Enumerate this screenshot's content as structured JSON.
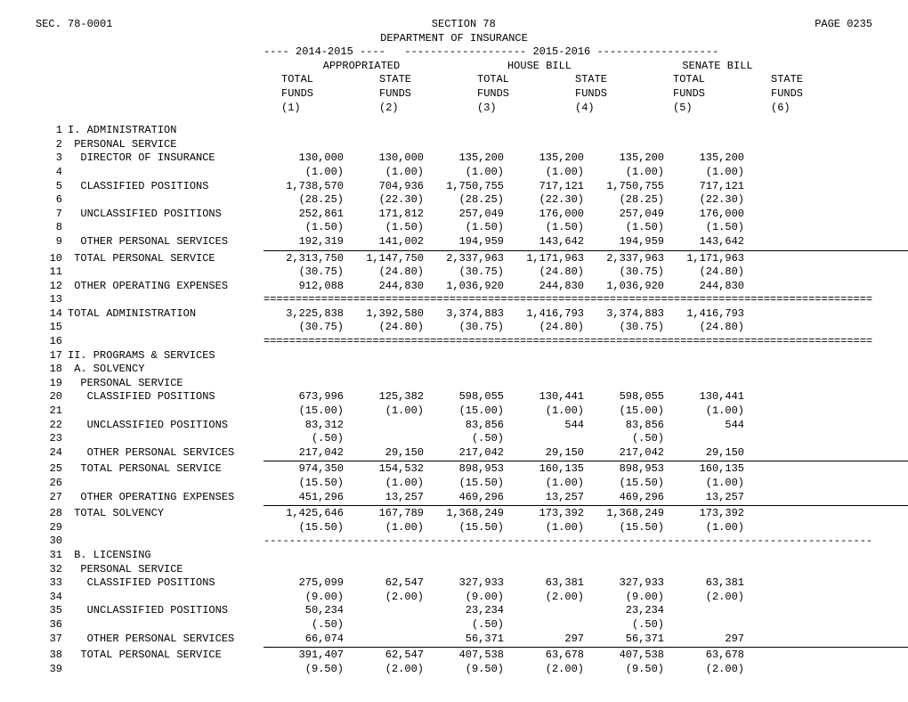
{
  "header": {
    "sec": "SEC.  78-0001",
    "section": "SECTION  78",
    "page": "PAGE 0235",
    "dept": "DEPARTMENT OF INSURANCE",
    "period_line": "---- 2014-2015 ----   ------------------- 2015-2016 -------------------",
    "group1": "APPROPRIATED",
    "group2": "HOUSE BILL",
    "group3": "SENATE BILL",
    "col_labels_a": [
      "TOTAL",
      "STATE",
      "TOTAL",
      "STATE",
      "TOTAL",
      "STATE"
    ],
    "col_labels_b": [
      "FUNDS",
      "FUNDS",
      "FUNDS",
      "FUNDS",
      "FUNDS",
      "FUNDS"
    ],
    "col_labels_c": [
      "(1)",
      "(2)",
      "(3)",
      "(4)",
      "(5)",
      "(6)"
    ]
  },
  "rows": [
    {
      "n": "1",
      "label": "I. ADMINISTRATION"
    },
    {
      "n": "2",
      "label": " PERSONAL SERVICE"
    },
    {
      "n": "3",
      "label": "  DIRECTOR OF INSURANCE",
      "c": [
        "130,000",
        "130,000",
        "135,200",
        "135,200",
        "135,200",
        "135,200"
      ]
    },
    {
      "n": "4",
      "label": "",
      "c": [
        "(1.00)",
        "(1.00)",
        "(1.00)",
        "(1.00)",
        "(1.00)",
        "(1.00)"
      ]
    },
    {
      "n": "5",
      "label": "  CLASSIFIED POSITIONS",
      "c": [
        "1,738,570",
        "704,936",
        "1,750,755",
        "717,121",
        "1,750,755",
        "717,121"
      ]
    },
    {
      "n": "6",
      "label": "",
      "c": [
        "(28.25)",
        "(22.30)",
        "(28.25)",
        "(22.30)",
        "(28.25)",
        "(22.30)"
      ]
    },
    {
      "n": "7",
      "label": "  UNCLASSIFIED POSITIONS",
      "c": [
        "252,861",
        "171,812",
        "257,049",
        "176,000",
        "257,049",
        "176,000"
      ]
    },
    {
      "n": "8",
      "label": "",
      "c": [
        "(1.50)",
        "(1.50)",
        "(1.50)",
        "(1.50)",
        "(1.50)",
        "(1.50)"
      ]
    },
    {
      "n": "9",
      "label": "  OTHER PERSONAL SERVICES",
      "c": [
        "192,319",
        "141,002",
        "194,959",
        "143,642",
        "194,959",
        "143,642"
      ]
    },
    {
      "rule": "thin"
    },
    {
      "n": "10",
      "label": " TOTAL PERSONAL SERVICE",
      "c": [
        "2,313,750",
        "1,147,750",
        "2,337,963",
        "1,171,963",
        "2,337,963",
        "1,171,963"
      ]
    },
    {
      "n": "11",
      "label": "",
      "c": [
        "(30.75)",
        "(24.80)",
        "(30.75)",
        "(24.80)",
        "(30.75)",
        "(24.80)"
      ]
    },
    {
      "n": "12",
      "label": " OTHER OPERATING EXPENSES",
      "c": [
        "912,088",
        "244,830",
        "1,036,920",
        "244,830",
        "1,036,920",
        "244,830"
      ]
    },
    {
      "n": "13",
      "label": "",
      "eq": true
    },
    {
      "n": "14",
      "label": "TOTAL ADMINISTRATION",
      "c": [
        "3,225,838",
        "1,392,580",
        "3,374,883",
        "1,416,793",
        "3,374,883",
        "1,416,793"
      ]
    },
    {
      "n": "15",
      "label": "",
      "c": [
        "(30.75)",
        "(24.80)",
        "(30.75)",
        "(24.80)",
        "(30.75)",
        "(24.80)"
      ]
    },
    {
      "n": "16",
      "label": "",
      "eq": true
    },
    {
      "n": "17",
      "label": "II. PROGRAMS & SERVICES"
    },
    {
      "n": "18",
      "label": " A. SOLVENCY"
    },
    {
      "n": "19",
      "label": "  PERSONAL SERVICE"
    },
    {
      "n": "20",
      "label": "   CLASSIFIED POSITIONS",
      "c": [
        "673,996",
        "125,382",
        "598,055",
        "130,441",
        "598,055",
        "130,441"
      ]
    },
    {
      "n": "21",
      "label": "",
      "c": [
        "(15.00)",
        "(1.00)",
        "(15.00)",
        "(1.00)",
        "(15.00)",
        "(1.00)"
      ]
    },
    {
      "n": "22",
      "label": "   UNCLASSIFIED POSITIONS",
      "c": [
        "83,312",
        "",
        "83,856",
        "544",
        "83,856",
        "544"
      ]
    },
    {
      "n": "23",
      "label": "",
      "c": [
        "(.50)",
        "",
        "(.50)",
        "",
        "(.50)",
        ""
      ]
    },
    {
      "n": "24",
      "label": "   OTHER PERSONAL SERVICES",
      "c": [
        "217,042",
        "29,150",
        "217,042",
        "29,150",
        "217,042",
        "29,150"
      ]
    },
    {
      "rule": "thin"
    },
    {
      "n": "25",
      "label": "  TOTAL PERSONAL SERVICE",
      "c": [
        "974,350",
        "154,532",
        "898,953",
        "160,135",
        "898,953",
        "160,135"
      ]
    },
    {
      "n": "26",
      "label": "",
      "c": [
        "(15.50)",
        "(1.00)",
        "(15.50)",
        "(1.00)",
        "(15.50)",
        "(1.00)"
      ]
    },
    {
      "n": "27",
      "label": "  OTHER OPERATING EXPENSES",
      "c": [
        "451,296",
        "13,257",
        "469,296",
        "13,257",
        "469,296",
        "13,257"
      ]
    },
    {
      "rule": "thin"
    },
    {
      "n": "28",
      "label": " TOTAL SOLVENCY",
      "c": [
        "1,425,646",
        "167,789",
        "1,368,249",
        "173,392",
        "1,368,249",
        "173,392"
      ]
    },
    {
      "n": "29",
      "label": "",
      "c": [
        "(15.50)",
        "(1.00)",
        "(15.50)",
        "(1.00)",
        "(15.50)",
        "(1.00)"
      ]
    },
    {
      "n": "30",
      "label": "",
      "dash": true
    },
    {
      "n": "31",
      "label": " B. LICENSING"
    },
    {
      "n": "32",
      "label": "  PERSONAL SERVICE"
    },
    {
      "n": "33",
      "label": "   CLASSIFIED POSITIONS",
      "c": [
        "275,099",
        "62,547",
        "327,933",
        "63,381",
        "327,933",
        "63,381"
      ]
    },
    {
      "n": "34",
      "label": "",
      "c": [
        "(9.00)",
        "(2.00)",
        "(9.00)",
        "(2.00)",
        "(9.00)",
        "(2.00)"
      ]
    },
    {
      "n": "35",
      "label": "   UNCLASSIFIED POSITIONS",
      "c": [
        "50,234",
        "",
        "23,234",
        "",
        "23,234",
        ""
      ]
    },
    {
      "n": "36",
      "label": "",
      "c": [
        "(.50)",
        "",
        "(.50)",
        "",
        "(.50)",
        ""
      ]
    },
    {
      "n": "37",
      "label": "   OTHER PERSONAL SERVICES",
      "c": [
        "66,074",
        "",
        "56,371",
        "297",
        "56,371",
        "297"
      ]
    },
    {
      "rule": "thin"
    },
    {
      "n": "38",
      "label": "  TOTAL PERSONAL SERVICE",
      "c": [
        "391,407",
        "62,547",
        "407,538",
        "63,678",
        "407,538",
        "63,678"
      ]
    },
    {
      "n": "39",
      "label": "",
      "c": [
        "(9.50)",
        "(2.00)",
        "(9.50)",
        "(2.00)",
        "(9.50)",
        "(2.00)"
      ]
    }
  ]
}
